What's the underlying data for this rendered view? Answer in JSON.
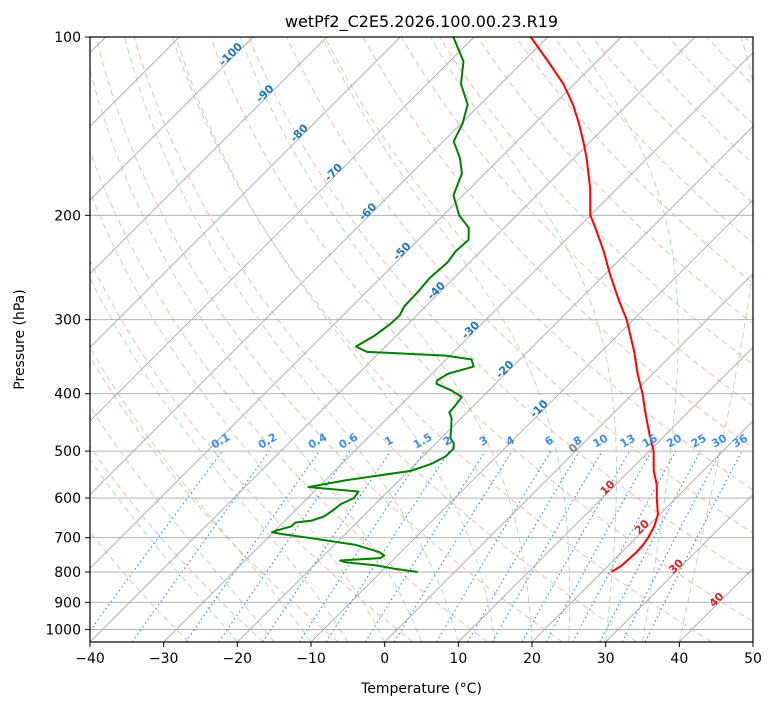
{
  "chart_data": {
    "type": "skew-t",
    "title": "wetPf2_C2E5.2026.100.00.23.R19",
    "xlabel": "Temperature (°C)",
    "ylabel": "Pressure (hPa)",
    "xlim": [
      -40,
      50
    ],
    "ylim": [
      1050,
      100
    ],
    "y_scale": "log",
    "grid": true,
    "x_ticks": [
      -40,
      -30,
      -20,
      -10,
      0,
      10,
      20,
      30,
      40,
      50
    ],
    "x_tick_labels": [
      "−40",
      "−30",
      "−20",
      "−10",
      "0",
      "10",
      "20",
      "30",
      "40",
      "50"
    ],
    "y_ticks": [
      1000,
      900,
      800,
      700,
      600,
      500,
      400,
      300,
      200,
      100
    ],
    "y_tick_labels": [
      "1000",
      "900",
      "800",
      "700",
      "600",
      "500",
      "400",
      "300",
      "200",
      "100"
    ],
    "series": [
      {
        "color": "#ff0000",
        "points": [
          {
            "p": 800,
            "t": 21.3
          },
          {
            "p": 780,
            "t": 21.8
          },
          {
            "p": 760,
            "t": 21.9
          },
          {
            "p": 740,
            "t": 22.0
          },
          {
            "p": 720,
            "t": 21.9
          },
          {
            "p": 700,
            "t": 21.6
          },
          {
            "p": 670,
            "t": 20.9
          },
          {
            "p": 640,
            "t": 19.8
          },
          {
            "p": 600,
            "t": 17.4
          },
          {
            "p": 570,
            "t": 15.6
          },
          {
            "p": 540,
            "t": 13.3
          },
          {
            "p": 500,
            "t": 10.6
          },
          {
            "p": 470,
            "t": 7.9
          },
          {
            "p": 430,
            "t": 4.2
          },
          {
            "p": 400,
            "t": 1.3
          },
          {
            "p": 370,
            "t": -2.1
          },
          {
            "p": 340,
            "t": -5.5
          },
          {
            "p": 300,
            "t": -10.9
          },
          {
            "p": 280,
            "t": -14.3
          },
          {
            "p": 250,
            "t": -19.6
          },
          {
            "p": 230,
            "t": -23.3
          },
          {
            "p": 210,
            "t": -27.6
          },
          {
            "p": 200,
            "t": -30.0
          },
          {
            "p": 180,
            "t": -33.7
          },
          {
            "p": 160,
            "t": -38.3
          },
          {
            "p": 150,
            "t": -41.0
          },
          {
            "p": 140,
            "t": -44.0
          },
          {
            "p": 130,
            "t": -47.4
          },
          {
            "p": 120,
            "t": -51.5
          },
          {
            "p": 110,
            "t": -56.6
          },
          {
            "p": 100,
            "t": -62.3
          }
        ]
      },
      {
        "color": "#008000",
        "points": [
          {
            "p": 800,
            "t": -5.0
          },
          {
            "p": 790,
            "t": -8.6
          },
          {
            "p": 780,
            "t": -11.4
          },
          {
            "p": 770,
            "t": -16.2
          },
          {
            "p": 765,
            "t": -17.1
          },
          {
            "p": 758,
            "t": -12.0
          },
          {
            "p": 750,
            "t": -11.8
          },
          {
            "p": 740,
            "t": -13.0
          },
          {
            "p": 720,
            "t": -17.1
          },
          {
            "p": 700,
            "t": -24.6
          },
          {
            "p": 690,
            "t": -28.7
          },
          {
            "p": 685,
            "t": -30.2
          },
          {
            "p": 680,
            "t": -29.7
          },
          {
            "p": 670,
            "t": -28.4
          },
          {
            "p": 660,
            "t": -28.3
          },
          {
            "p": 655,
            "t": -26.4
          },
          {
            "p": 645,
            "t": -25.3
          },
          {
            "p": 630,
            "t": -24.9
          },
          {
            "p": 615,
            "t": -24.7
          },
          {
            "p": 600,
            "t": -23.7
          },
          {
            "p": 585,
            "t": -24.0
          },
          {
            "p": 575,
            "t": -31.4
          },
          {
            "p": 560,
            "t": -27.2
          },
          {
            "p": 540,
            "t": -19.7
          },
          {
            "p": 525,
            "t": -17.8
          },
          {
            "p": 510,
            "t": -16.9
          },
          {
            "p": 495,
            "t": -16.9
          },
          {
            "p": 485,
            "t": -17.6
          },
          {
            "p": 475,
            "t": -18.8
          },
          {
            "p": 460,
            "t": -19.8
          },
          {
            "p": 440,
            "t": -21.3
          },
          {
            "p": 430,
            "t": -22.4
          },
          {
            "p": 420,
            "t": -22.5
          },
          {
            "p": 405,
            "t": -22.8
          },
          {
            "p": 395,
            "t": -25.1
          },
          {
            "p": 385,
            "t": -28.0
          },
          {
            "p": 380,
            "t": -28.4
          },
          {
            "p": 370,
            "t": -27.8
          },
          {
            "p": 360,
            "t": -25.3
          },
          {
            "p": 350,
            "t": -26.6
          },
          {
            "p": 345,
            "t": -30.6
          },
          {
            "p": 340,
            "t": -41.8
          },
          {
            "p": 333,
            "t": -44.0
          },
          {
            "p": 320,
            "t": -43.0
          },
          {
            "p": 305,
            "t": -42.4
          },
          {
            "p": 295,
            "t": -42.3
          },
          {
            "p": 285,
            "t": -42.9
          },
          {
            "p": 270,
            "t": -43.0
          },
          {
            "p": 255,
            "t": -43.3
          },
          {
            "p": 240,
            "t": -43.0
          },
          {
            "p": 230,
            "t": -43.4
          },
          {
            "p": 220,
            "t": -43.2
          },
          {
            "p": 210,
            "t": -44.8
          },
          {
            "p": 200,
            "t": -47.8
          },
          {
            "p": 185,
            "t": -51.3
          },
          {
            "p": 170,
            "t": -53.1
          },
          {
            "p": 160,
            "t": -55.5
          },
          {
            "p": 150,
            "t": -58.6
          },
          {
            "p": 140,
            "t": -59.8
          },
          {
            "p": 130,
            "t": -61.7
          },
          {
            "p": 120,
            "t": -65.4
          },
          {
            "p": 110,
            "t": -68.1
          },
          {
            "p": 100,
            "t": -72.8
          }
        ]
      }
    ],
    "dry_adiabat_labels": [
      "-100",
      "-90",
      "-80",
      "-70",
      "-60",
      "-50",
      "-40",
      "-30",
      "-20",
      "-10",
      "0",
      "10",
      "20",
      "30",
      "40"
    ],
    "mixing_ratio_labels": [
      "0.1",
      "0.2",
      "0.4",
      "0.6",
      "1",
      "1.5",
      "2",
      "3",
      "4",
      "6",
      "8",
      "10",
      "13",
      "16",
      "20",
      "25",
      "30",
      "36"
    ],
    "colors": {
      "temperature": "#ff0000",
      "dewpoint": "#008000",
      "dry_adiabat": "#e8a080",
      "moist_adiabat": "#90c890",
      "mixing_ratio": "#3a8ee6",
      "isotherm": "#a8a8a8",
      "dry_label": "#1f77b4",
      "warm_label": "#d62728",
      "zero_label": "#808080"
    }
  }
}
